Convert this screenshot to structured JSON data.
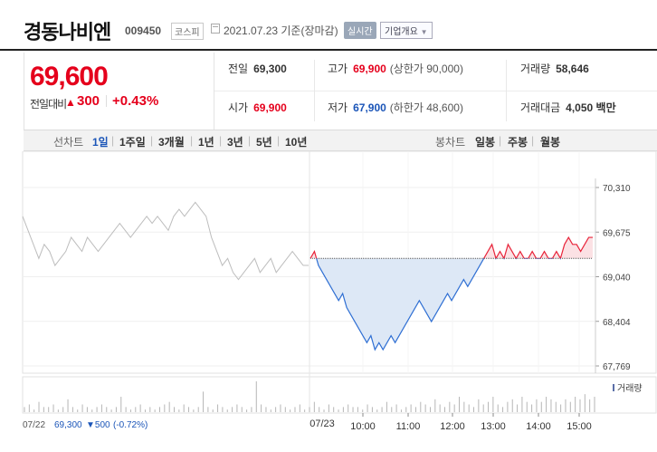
{
  "header": {
    "stock_name": "경동나비엔",
    "stock_code": "009450",
    "market": "코스피",
    "date_text": "2021.07.23 기준(장마감)",
    "realtime_label": "실시간",
    "info_button": "기업개요"
  },
  "summary": {
    "price": "69,600",
    "change_label": "전일대비",
    "change_arrow": "▲",
    "change_value": "300",
    "change_pct": "+0.43%",
    "prev_close_label": "전일",
    "prev_close": "69,300",
    "high_label": "고가",
    "high": "69,900",
    "upper_limit": "(상한가 90,000)",
    "volume_label": "거래량",
    "volume": "58,646",
    "open_label": "시가",
    "open": "69,900",
    "low_label": "저가",
    "low": "67,900",
    "lower_limit": "(하한가 48,600)",
    "amount_label": "거래대금",
    "amount": "4,050 백만"
  },
  "tabs": {
    "line_title": "선차트",
    "line_periods": [
      "1일",
      "1주일",
      "3개월",
      "1년",
      "3년",
      "5년",
      "10년"
    ],
    "active_line": "1일",
    "candle_title": "봉차트",
    "candle_periods": [
      "일봉",
      "주봉",
      "월봉"
    ]
  },
  "chart_data": {
    "type": "line",
    "y_ticks": [
      "70,310",
      "69,675",
      "69,040",
      "68,404",
      "67,769"
    ],
    "ylim": [
      67769,
      70310
    ],
    "reference_price": 69300,
    "time_ticks": [
      "10:00",
      "11:00",
      "12:00",
      "13:00",
      "14:00",
      "15:00"
    ],
    "prev_day_label": "07/22",
    "today_label": "07/23",
    "volume_legend": "거래량",
    "footer_price": "69,300",
    "footer_change": "▼500",
    "footer_pct": "(-0.72%)",
    "prev_day_series": [
      69900,
      69700,
      69500,
      69300,
      69500,
      69400,
      69200,
      69300,
      69400,
      69600,
      69500,
      69400,
      69600,
      69500,
      69400,
      69500,
      69600,
      69700,
      69800,
      69700,
      69600,
      69700,
      69800,
      69900,
      69800,
      69900,
      69800,
      69700,
      69900,
      70000,
      69900,
      70000,
      70100,
      70000,
      69900,
      69600,
      69400,
      69200,
      69300,
      69100,
      69000,
      69100,
      69200,
      69300,
      69100,
      69200,
      69300,
      69100,
      69200,
      69300,
      69400,
      69300,
      69200,
      69200
    ],
    "today_series": [
      69300,
      69400,
      69200,
      69100,
      69000,
      68900,
      68800,
      68700,
      68800,
      68600,
      68500,
      68400,
      68300,
      68200,
      68100,
      68200,
      68000,
      68100,
      68000,
      68100,
      68200,
      68100,
      68200,
      68300,
      68400,
      68500,
      68600,
      68700,
      68600,
      68500,
      68400,
      68500,
      68600,
      68700,
      68800,
      68700,
      68800,
      68900,
      69000,
      68900,
      69000,
      69100,
      69200,
      69300,
      69400,
      69500,
      69300,
      69400,
      69300,
      69500,
      69400,
      69300,
      69400,
      69300,
      69300,
      69400,
      69300,
      69300,
      69400,
      69300,
      69300,
      69400,
      69300,
      69500,
      69600,
      69500,
      69500,
      69400,
      69500,
      69600,
      69600
    ],
    "volume": [
      2,
      3,
      1,
      4,
      2,
      2,
      3,
      1,
      2,
      5,
      2,
      1,
      3,
      2,
      1,
      2,
      3,
      2,
      1,
      2,
      6,
      2,
      1,
      2,
      3,
      1,
      2,
      1,
      2,
      3,
      4,
      2,
      1,
      3,
      2,
      1,
      2,
      8,
      2,
      1,
      3,
      2,
      1,
      2,
      3,
      2,
      1,
      2,
      12,
      3,
      2,
      1,
      2,
      3,
      2,
      1,
      2,
      3,
      1,
      2,
      4,
      2,
      1,
      3,
      2,
      1,
      2,
      3,
      2,
      2,
      1,
      3,
      2,
      1,
      2,
      4,
      2,
      3,
      1,
      2,
      3,
      2,
      4,
      3,
      2,
      5,
      3,
      2,
      4,
      3,
      6,
      4,
      3,
      2,
      5,
      3,
      4,
      6,
      3,
      2,
      4,
      5,
      3,
      6,
      4,
      3,
      5,
      4,
      6,
      5,
      4,
      3,
      5,
      4,
      6,
      5,
      7,
      5,
      6
    ]
  }
}
